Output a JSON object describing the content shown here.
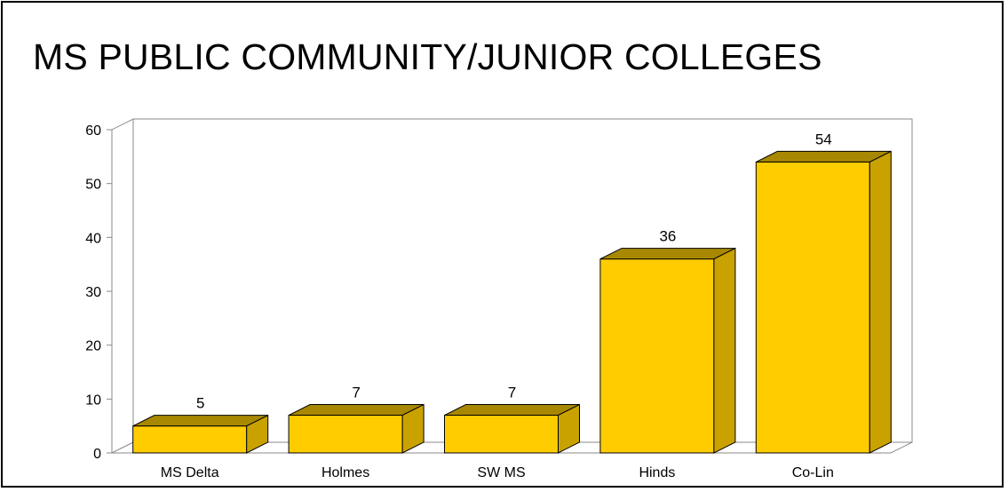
{
  "colors": {
    "bar_front": "#FFCC00",
    "bar_top": "#A88800",
    "bar_side": "#C9A200",
    "bar_edge": "#000000"
  },
  "chart_data": {
    "type": "bar",
    "title": "MS PUBLIC COMMUNITY/JUNIOR COLLEGES",
    "categories": [
      "MS Delta",
      "Holmes",
      "SW MS",
      "Hinds",
      "Co-Lin"
    ],
    "values": [
      5,
      7,
      7,
      36,
      54
    ],
    "data_labels": [
      "5",
      "7",
      "7",
      "36",
      "54"
    ],
    "xlabel": "",
    "ylabel": "",
    "ylim": [
      0,
      60
    ],
    "yticks": [
      0,
      10,
      20,
      30,
      40,
      50,
      60
    ],
    "grid": false,
    "legend": "none",
    "style": "3d"
  }
}
